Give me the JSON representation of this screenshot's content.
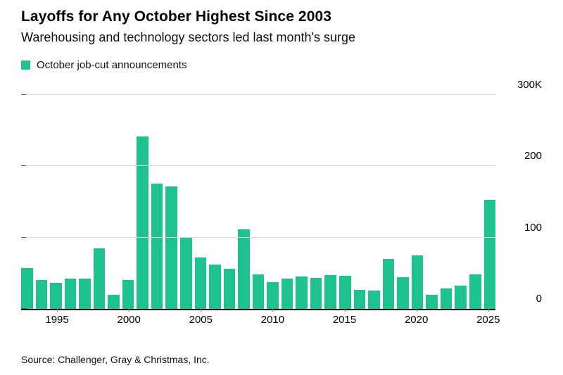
{
  "title": "Layoffs for Any October Highest Since 2003",
  "subtitle": "Warehousing and technology sectors led last month's surge",
  "legend": {
    "label": "October job-cut announcements",
    "color": "#1ec28e"
  },
  "source": "Source: Challenger, Gray & Christmas, Inc.",
  "chart_data": {
    "type": "bar",
    "title": "Layoffs for Any October Highest Since 2003",
    "subtitle": "Warehousing and technology sectors led last month's surge",
    "series_name": "October job-cut announcements",
    "unit": "thousands of job cuts",
    "bar_color": "#1ec28e",
    "grid": true,
    "legend_position": "top-left",
    "ylim": [
      0,
      300
    ],
    "x": [
      1993,
      1994,
      1995,
      1996,
      1997,
      1998,
      1999,
      2000,
      2001,
      2002,
      2003,
      2004,
      2005,
      2006,
      2007,
      2008,
      2009,
      2010,
      2011,
      2012,
      2013,
      2014,
      2015,
      2016,
      2017,
      2018,
      2019,
      2020,
      2021,
      2022,
      2023,
      2024,
      2025
    ],
    "values": [
      57,
      40,
      37,
      42,
      42,
      85,
      20,
      40,
      242,
      176,
      172,
      101,
      72,
      62,
      56,
      112,
      48,
      38,
      42,
      45,
      43,
      47,
      46,
      27,
      26,
      70,
      44,
      75,
      20,
      29,
      33,
      48,
      153
    ],
    "yticks": [
      {
        "value": 0,
        "label": "0"
      },
      {
        "value": 100,
        "label": "100"
      },
      {
        "value": 200,
        "label": "200"
      },
      {
        "value": 300,
        "label": "300K"
      }
    ],
    "xticks": [
      1995,
      2000,
      2005,
      2010,
      2015,
      2020,
      2025
    ]
  }
}
